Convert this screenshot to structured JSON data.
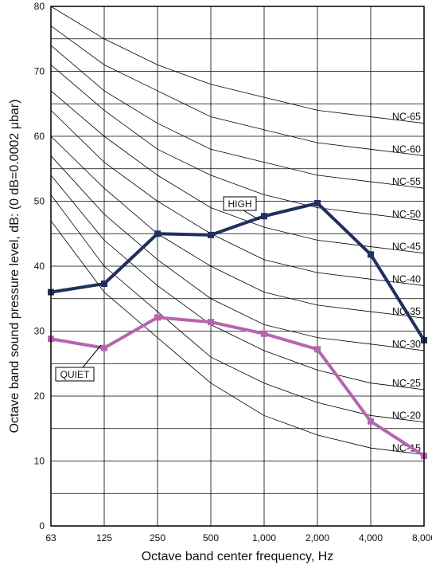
{
  "chart_data": {
    "type": "line",
    "xlabel": "Octave band center frequency, Hz",
    "ylabel": "Octave band sound pressure level, dB: (0 dB=0.0002 μbar)",
    "x_categories": [
      "63",
      "125",
      "250",
      "500",
      "1,000",
      "2,000",
      "4,000",
      "8,000"
    ],
    "ylim": [
      0,
      80
    ],
    "y_ticks": [
      "0",
      "10",
      "20",
      "30",
      "40",
      "50",
      "60",
      "70",
      "80"
    ],
    "grid": true,
    "nc_curves": [
      {
        "name": "NC-65",
        "values": [
          80,
          75,
          71,
          68,
          66,
          64,
          63,
          62
        ]
      },
      {
        "name": "NC-60",
        "values": [
          77,
          71,
          67,
          63,
          61,
          59,
          58,
          57
        ]
      },
      {
        "name": "NC-55",
        "values": [
          74,
          67,
          62,
          58,
          56,
          54,
          53,
          52
        ]
      },
      {
        "name": "NC-50",
        "values": [
          71,
          64,
          58,
          54,
          51,
          49,
          48,
          47
        ]
      },
      {
        "name": "NC-45",
        "values": [
          67,
          60,
          54,
          49,
          46,
          44,
          43,
          42
        ]
      },
      {
        "name": "NC-40",
        "values": [
          64,
          56,
          50,
          45,
          41,
          39,
          38,
          37
        ]
      },
      {
        "name": "NC-35",
        "values": [
          60,
          52,
          45,
          40,
          36,
          34,
          33,
          32
        ]
      },
      {
        "name": "NC-30",
        "values": [
          57,
          48,
          41,
          35,
          31,
          29,
          28,
          27
        ]
      },
      {
        "name": "NC-25",
        "values": [
          54,
          44,
          37,
          31,
          27,
          24,
          22,
          21
        ]
      },
      {
        "name": "NC-20",
        "values": [
          51,
          40,
          33,
          26,
          22,
          19,
          17,
          16
        ]
      },
      {
        "name": "NC-15",
        "values": [
          47,
          36,
          29,
          22,
          17,
          14,
          12,
          11
        ]
      }
    ],
    "series": [
      {
        "name": "HIGH",
        "color": "#1f2f5e",
        "values": [
          36,
          37.3,
          45,
          44.8,
          47.7,
          49.7,
          41.8,
          28.6
        ]
      },
      {
        "name": "QUIET",
        "color": "#b565b0",
        "values": [
          28.8,
          27.4,
          32.1,
          31.4,
          29.6,
          27.2,
          16.1,
          10.8
        ]
      }
    ]
  }
}
